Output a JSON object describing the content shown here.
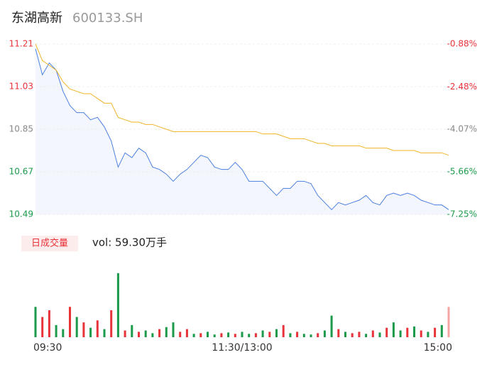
{
  "chart_data": {
    "type": "intraday",
    "title": "东湖高新",
    "subtitle": "600133.SH",
    "xlim": [
      0,
      240
    ],
    "xticks": [
      {
        "value": 0,
        "label": "09:30"
      },
      {
        "value": 120,
        "label": "11:30/13:00"
      },
      {
        "value": 240,
        "label": "15:00"
      }
    ],
    "x": [
      0,
      4,
      8,
      12,
      16,
      20,
      24,
      28,
      32,
      36,
      40,
      44,
      48,
      52,
      56,
      60,
      64,
      68,
      72,
      76,
      80,
      84,
      88,
      92,
      96,
      100,
      104,
      108,
      112,
      116,
      120,
      124,
      128,
      132,
      136,
      140,
      144,
      148,
      152,
      156,
      160,
      164,
      168,
      172,
      176,
      180,
      184,
      188,
      192,
      196,
      200,
      204,
      208,
      212,
      216,
      220,
      224,
      228,
      232,
      236,
      240
    ],
    "ylim": [
      10.49,
      11.21
    ],
    "yticks": [
      11.21,
      11.03,
      10.85,
      10.67,
      10.49
    ],
    "ytick_colors": [
      "#e8333a",
      "#e8333a",
      "#888888",
      "#1a9a4a",
      "#1a9a4a"
    ],
    "y2lim": [
      -7.25,
      -0.88
    ],
    "y2ticks": [
      {
        "value": -0.88,
        "label": "-0.88%"
      },
      {
        "value": -2.48,
        "label": "-2.48%"
      },
      {
        "value": -4.07,
        "label": "-4.07%"
      },
      {
        "value": -5.66,
        "label": "-5.66%"
      },
      {
        "value": -7.25,
        "label": "-7.25%"
      }
    ],
    "grid": true,
    "series": [
      {
        "name": "price",
        "color": "#4a7fe0",
        "fill": "#f3f6fd",
        "values": [
          11.19,
          11.08,
          11.13,
          11.1,
          11.01,
          10.95,
          10.92,
          10.92,
          10.89,
          10.9,
          10.86,
          10.8,
          10.69,
          10.75,
          10.73,
          10.77,
          10.75,
          10.69,
          10.68,
          10.66,
          10.63,
          10.66,
          10.68,
          10.71,
          10.74,
          10.73,
          10.69,
          10.68,
          10.68,
          10.71,
          10.68,
          10.63,
          10.63,
          10.63,
          10.6,
          10.57,
          10.6,
          10.6,
          10.63,
          10.63,
          10.62,
          10.57,
          10.54,
          10.51,
          10.54,
          10.53,
          10.54,
          10.55,
          10.57,
          10.54,
          10.53,
          10.57,
          10.58,
          10.57,
          10.58,
          10.57,
          10.55,
          10.54,
          10.53,
          10.53,
          10.51
        ]
      },
      {
        "name": "average",
        "color": "#f0b429",
        "values": [
          11.21,
          11.14,
          11.12,
          11.1,
          11.05,
          11.02,
          11.01,
          11.0,
          11.0,
          10.98,
          10.96,
          10.96,
          10.9,
          10.89,
          10.88,
          10.88,
          10.87,
          10.87,
          10.86,
          10.85,
          10.84,
          10.84,
          10.84,
          10.84,
          10.84,
          10.84,
          10.84,
          10.84,
          10.84,
          10.84,
          10.84,
          10.84,
          10.84,
          10.83,
          10.83,
          10.83,
          10.82,
          10.81,
          10.81,
          10.81,
          10.8,
          10.79,
          10.79,
          10.78,
          10.78,
          10.78,
          10.78,
          10.78,
          10.77,
          10.77,
          10.77,
          10.77,
          10.76,
          10.76,
          10.76,
          10.76,
          10.75,
          10.75,
          10.75,
          10.75,
          10.74
        ]
      }
    ],
    "volume": {
      "legend": "日成交量",
      "label": "vol: 59.30万手",
      "ylim": [
        0,
        100
      ],
      "values": [
        45,
        30,
        40,
        18,
        12,
        45,
        30,
        22,
        14,
        25,
        12,
        40,
        95,
        10,
        18,
        8,
        10,
        6,
        12,
        15,
        22,
        8,
        12,
        5,
        6,
        8,
        4,
        6,
        7,
        5,
        8,
        5,
        6,
        10,
        8,
        12,
        18,
        6,
        8,
        5,
        4,
        6,
        10,
        32,
        12,
        8,
        6,
        8,
        5,
        10,
        7,
        14,
        22,
        10,
        14,
        16,
        10,
        8,
        14,
        18,
        45
      ],
      "colors": [
        "#1a9a4a",
        "#e8333a",
        "#e8333a",
        "#1a9a4a",
        "#1a9a4a",
        "#e8333a",
        "#1a9a4a",
        "#e8333a",
        "#1a9a4a",
        "#e8333a",
        "#1a9a4a",
        "#e8333a",
        "#1a9a4a",
        "#e8333a",
        "#1a9a4a",
        "#e8333a",
        "#1a9a4a",
        "#1a9a4a",
        "#e8333a",
        "#1a9a4a",
        "#1a9a4a",
        "#e8333a",
        "#e8333a",
        "#1a9a4a",
        "#e8333a",
        "#1a9a4a",
        "#1a9a4a",
        "#e8333a",
        "#1a9a4a",
        "#e8333a",
        "#1a9a4a",
        "#1a9a4a",
        "#e8333a",
        "#1a9a4a",
        "#e8333a",
        "#1a9a4a",
        "#e8333a",
        "#1a9a4a",
        "#e8333a",
        "#1a9a4a",
        "#1a9a4a",
        "#e8333a",
        "#1a9a4a",
        "#1a9a4a",
        "#e8333a",
        "#1a9a4a",
        "#e8333a",
        "#e8333a",
        "#1a9a4a",
        "#e8333a",
        "#1a9a4a",
        "#e8333a",
        "#1a9a4a",
        "#1a9a4a",
        "#e8333a",
        "#1a9a4a",
        "#e8333a",
        "#1a9a4a",
        "#e8333a",
        "#1a9a4a",
        "#f4a6a6"
      ]
    }
  }
}
